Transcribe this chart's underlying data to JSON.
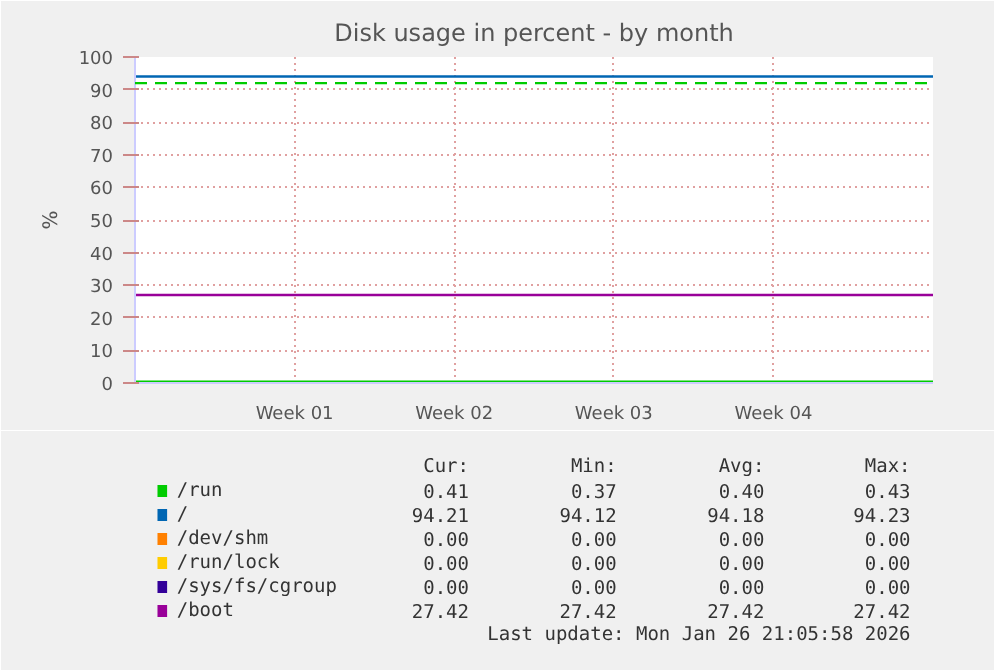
{
  "chart_data": {
    "type": "line",
    "title": "Disk usage in percent - by month",
    "ylabel": "%",
    "categories": [
      null,
      "Week 01",
      "Week 02",
      "Week 03",
      "Week 04",
      null
    ],
    "ylim": [
      0,
      100
    ],
    "yticks": [
      0,
      10,
      20,
      30,
      40,
      50,
      60,
      70,
      80,
      90,
      100
    ],
    "grid": true,
    "legend": "bottom",
    "line_style": "solid",
    "marker": "none",
    "series": [
      {
        "name": "/run",
        "color": "#00cc00",
        "values": [
          0.4,
          0.4,
          0.4,
          0.4,
          0.4,
          0.4
        ]
      },
      {
        "name": "/",
        "color": "#0066b3",
        "values": [
          94,
          94,
          94,
          94,
          94,
          94
        ]
      },
      {
        "name": "/dev/shm",
        "color": "#ff8000",
        "values": [
          null,
          null,
          null,
          null,
          null,
          null
        ]
      },
      {
        "name": "/run/lock",
        "color": "#ffcc00",
        "values": [
          null,
          null,
          null,
          null,
          null,
          null
        ]
      },
      {
        "name": "/sys/fs/cgroup",
        "color": "#330099",
        "values": [
          null,
          null,
          null,
          null,
          null,
          null
        ]
      },
      {
        "name": "/boot",
        "color": "#990099",
        "values": [
          27,
          27,
          27,
          27,
          27,
          27
        ]
      }
    ],
    "ref_lines": [
      {
        "axis": "y",
        "value": 92,
        "label": null,
        "color": "#00cc00",
        "line_style": "dashed"
      }
    ],
    "annotations": [
      "Cur:",
      "Min:",
      "Avg:",
      "Max:",
      "0.41",
      "0.37",
      "0.40",
      "0.43",
      "94.21",
      "94.12",
      "94.18",
      "94.23",
      "0.00",
      "0.00",
      "0.00",
      "0.00",
      "0.00",
      "0.00",
      "0.00",
      "0.00",
      "0.00",
      "0.00",
      "0.00",
      "0.00",
      "27.42",
      "27.42",
      "27.42",
      "27.42",
      "Last update: Mon Jan 26 21:05:58 2026"
    ]
  }
}
